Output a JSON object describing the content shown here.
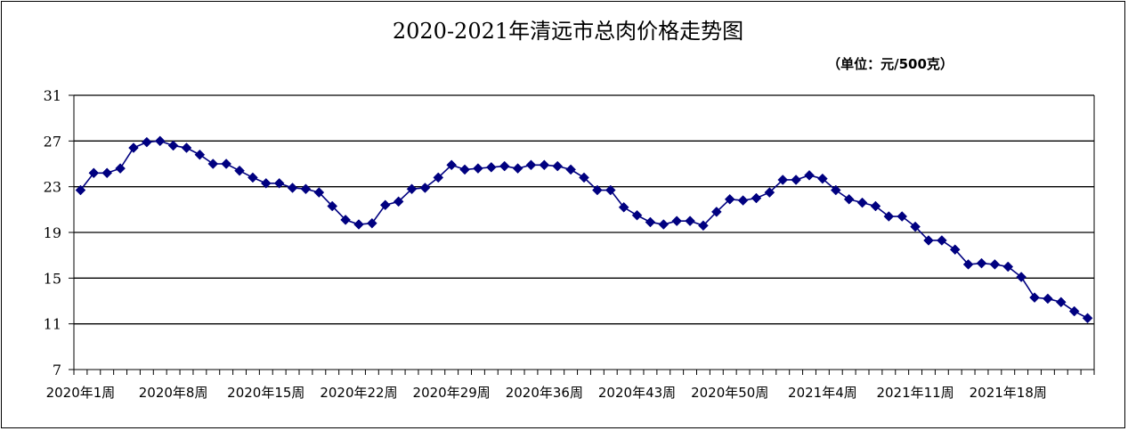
{
  "chart_data": {
    "type": "line",
    "title": "2020-2021年清远市总肉价格走势图",
    "unit_note": "（单位：元/500克）",
    "xlabel": "",
    "ylabel": "",
    "ylim": [
      7,
      31
    ],
    "yticks": [
      7,
      11,
      15,
      19,
      23,
      27,
      31
    ],
    "grid": true,
    "legend": "none",
    "x_tick_labels": [
      "2020年1周",
      "2020年8周",
      "2020年15周",
      "2020年22周",
      "2020年29周",
      "2020年36周",
      "2020年43周",
      "2020年50周",
      "2021年4周",
      "2021年11周",
      "2021年18周"
    ],
    "x_tick_label_every": 7,
    "series": [
      {
        "color": "#000080",
        "marker": "diamond",
        "values": [
          22.7,
          24.2,
          24.2,
          24.6,
          26.4,
          26.9,
          27.0,
          26.6,
          26.4,
          25.8,
          25.0,
          25.0,
          24.4,
          23.8,
          23.3,
          23.3,
          22.9,
          22.8,
          22.5,
          21.3,
          20.1,
          19.7,
          19.8,
          21.4,
          21.7,
          22.8,
          22.9,
          23.8,
          24.9,
          24.5,
          24.6,
          24.7,
          24.8,
          24.6,
          24.9,
          24.9,
          24.8,
          24.5,
          23.8,
          22.7,
          22.7,
          21.2,
          20.5,
          19.9,
          19.7,
          20.0,
          20.0,
          19.6,
          20.8,
          21.9,
          21.8,
          22.0,
          22.5,
          23.6,
          23.6,
          24.0,
          23.7,
          22.7,
          21.9,
          21.6,
          21.3,
          20.4,
          20.4,
          19.5,
          18.3,
          18.3,
          17.5,
          16.2,
          16.3,
          16.2,
          16.0,
          15.1,
          13.3,
          13.2,
          12.9,
          12.1,
          11.5
        ]
      }
    ]
  }
}
